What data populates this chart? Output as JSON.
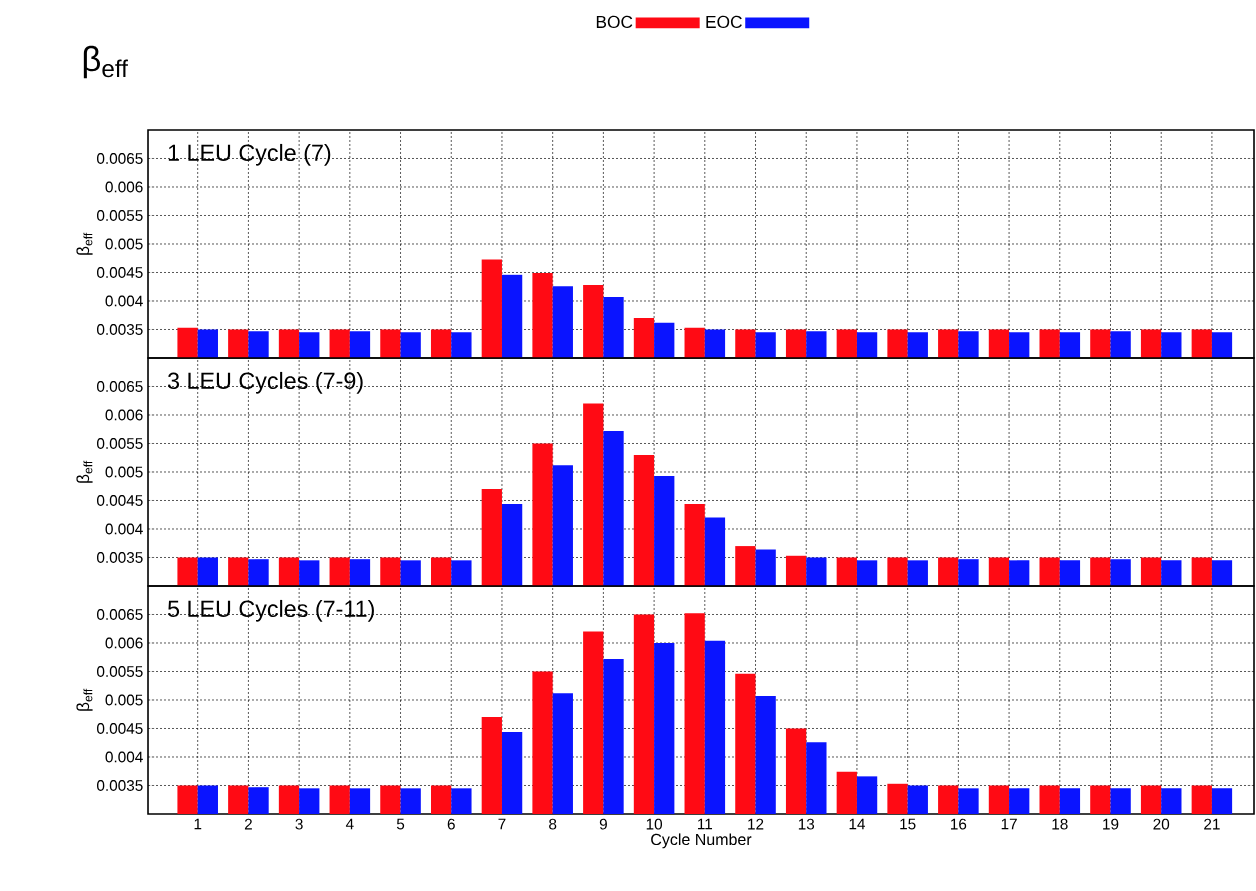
{
  "chart_data": [
    {
      "type": "bar",
      "title": "1 LEU Cycle (7)",
      "ylabel": "β$_{eff}$",
      "annotations": [
        "β$_{eff}$"
      ],
      "categories": [
        "1",
        "2",
        "3",
        "4",
        "5",
        "6",
        "7",
        "8",
        "9",
        "10",
        "11",
        "12",
        "13",
        "14",
        "15",
        "16",
        "17",
        "18",
        "19",
        "20",
        "21"
      ],
      "series": [
        {
          "name": "BOC",
          "color": "#ff0a14",
          "values": [
            0.00353,
            0.0035,
            0.0035,
            0.0035,
            0.0035,
            0.0035,
            0.00473,
            0.00449,
            0.00428,
            0.0037,
            0.00353,
            0.0035,
            0.0035,
            0.0035,
            0.0035,
            0.0035,
            0.0035,
            0.0035,
            0.0035,
            0.0035,
            0.0035
          ]
        },
        {
          "name": "EOC",
          "color": "#0a14ff",
          "values": [
            0.0035,
            0.00347,
            0.00345,
            0.00347,
            0.00345,
            0.00345,
            0.00446,
            0.00426,
            0.00407,
            0.00362,
            0.0035,
            0.00345,
            0.00347,
            0.00345,
            0.00345,
            0.00347,
            0.00345,
            0.00345,
            0.00347,
            0.00345,
            0.00345
          ]
        }
      ],
      "ylim": [
        0.003,
        0.007
      ],
      "yticks": [
        0.0035,
        0.004,
        0.0045,
        0.005,
        0.0055,
        0.006,
        0.0065
      ],
      "grid": true,
      "legend": "top",
      "tick_labels": "y"
    },
    {
      "type": "bar",
      "title": "3 LEU Cycles (7-9)",
      "ylabel": "β$_{eff}$",
      "categories": [
        "1",
        "2",
        "3",
        "4",
        "5",
        "6",
        "7",
        "8",
        "9",
        "10",
        "11",
        "12",
        "13",
        "14",
        "15",
        "16",
        "17",
        "18",
        "19",
        "20",
        "21"
      ],
      "series": [
        {
          "color": "#ff0a14",
          "values": [
            0.0035,
            0.0035,
            0.0035,
            0.0035,
            0.0035,
            0.0035,
            0.0047,
            0.0055,
            0.0062,
            0.0053,
            0.00444,
            0.0037,
            0.00353,
            0.0035,
            0.0035,
            0.0035,
            0.0035,
            0.0035,
            0.0035,
            0.0035,
            0.0035
          ]
        },
        {
          "color": "#0a14ff",
          "values": [
            0.0035,
            0.00347,
            0.00345,
            0.00347,
            0.00345,
            0.00345,
            0.00444,
            0.00512,
            0.00572,
            0.00493,
            0.0042,
            0.00364,
            0.0035,
            0.00345,
            0.00345,
            0.00347,
            0.00345,
            0.00345,
            0.00347,
            0.00345,
            0.00345
          ]
        }
      ],
      "ylim": [
        0.003,
        0.007
      ],
      "yticks": [
        0.0035,
        0.004,
        0.0045,
        0.005,
        0.0055,
        0.006,
        0.0065
      ],
      "grid": true,
      "tick_labels": "y"
    },
    {
      "type": "bar",
      "title": "5 LEU Cycles (7-11)",
      "ylabel": "β$_{eff}$",
      "xlabel": "Cycle Number",
      "categories": [
        "1",
        "2",
        "3",
        "4",
        "5",
        "6",
        "7",
        "8",
        "9",
        "10",
        "11",
        "12",
        "13",
        "14",
        "15",
        "16",
        "17",
        "18",
        "19",
        "20",
        "21"
      ],
      "series": [
        {
          "color": "#ff0a14",
          "values": [
            0.0035,
            0.0035,
            0.0035,
            0.0035,
            0.0035,
            0.0035,
            0.0047,
            0.0055,
            0.0062,
            0.0065,
            0.00652,
            0.00546,
            0.0045,
            0.00374,
            0.00353,
            0.0035,
            0.0035,
            0.0035,
            0.0035,
            0.0035,
            0.0035
          ]
        },
        {
          "color": "#0a14ff",
          "values": [
            0.0035,
            0.00347,
            0.00345,
            0.00345,
            0.00345,
            0.00345,
            0.00444,
            0.00512,
            0.00572,
            0.006,
            0.00604,
            0.00507,
            0.00426,
            0.00366,
            0.0035,
            0.00345,
            0.00345,
            0.00345,
            0.00345,
            0.00345,
            0.00345
          ]
        }
      ],
      "ylim": [
        0.003,
        0.007
      ],
      "yticks": [
        0.0035,
        0.004,
        0.0045,
        0.005,
        0.0055,
        0.006,
        0.0065
      ],
      "grid": true
    }
  ]
}
